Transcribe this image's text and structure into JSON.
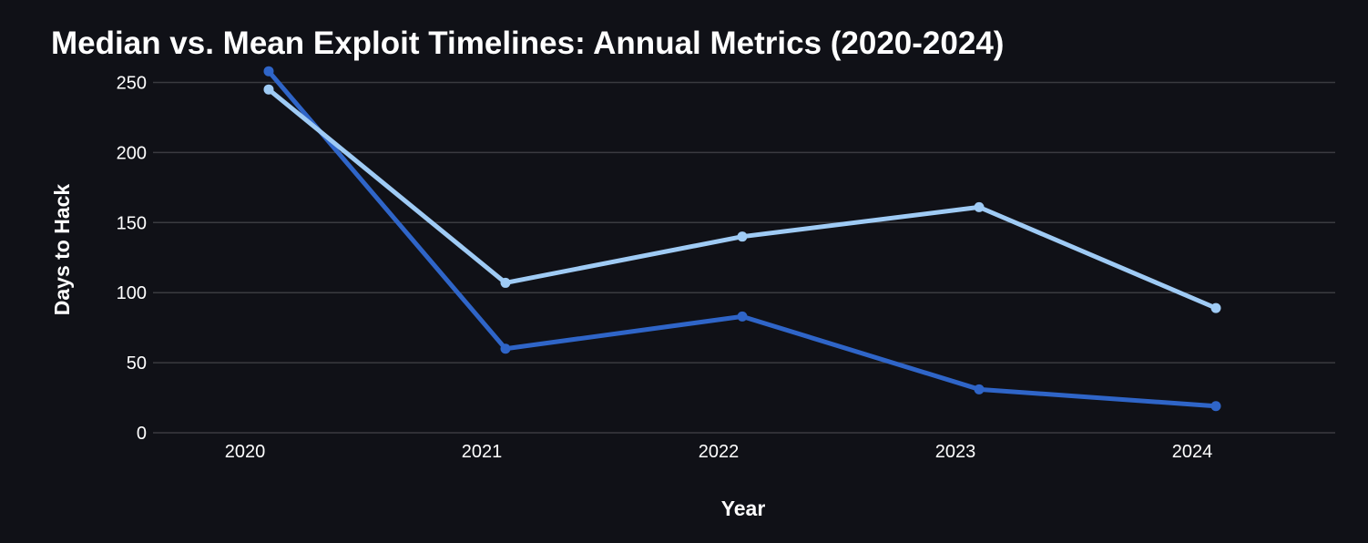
{
  "chart_data": {
    "type": "line",
    "title": "Median vs. Mean Exploit Timelines: Annual Metrics (2020-2024)",
    "xlabel": "Year",
    "ylabel": "Days to Hack",
    "categories": [
      "2020",
      "2021",
      "2022",
      "2023",
      "2024"
    ],
    "ylim": [
      0,
      260
    ],
    "yticks": [
      0,
      50,
      100,
      150,
      200,
      250
    ],
    "grid": true,
    "legend": "none",
    "series": [
      {
        "values": [
          258,
          60,
          83,
          31,
          19
        ],
        "color": "#2f65c8"
      },
      {
        "values": [
          245,
          107,
          140,
          161,
          89
        ],
        "color": "#9fcbf5"
      }
    ]
  }
}
